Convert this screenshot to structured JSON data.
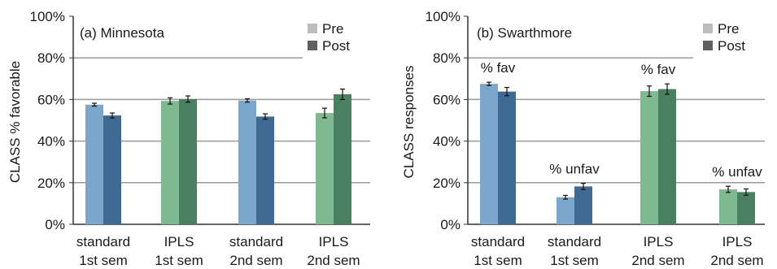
{
  "colors": {
    "standard_pre": "#7aa7cb",
    "standard_post": "#3e6a93",
    "ipls_pre": "#7fb992",
    "ipls_post": "#4a8060",
    "legend_pre": "#bdbdbd",
    "legend_post": "#5f5f5f",
    "grid": "#9a9a9a",
    "axis": "#333333"
  },
  "legend": {
    "pre": "Pre",
    "post": "Post"
  },
  "chart_data": [
    {
      "type": "bar",
      "title": "(a) Minnesota",
      "ylabel": "CLASS % favorable",
      "xlabel": "",
      "ylim": [
        0,
        100
      ],
      "yticks": [
        "0%",
        "20%",
        "40%",
        "60%",
        "80%",
        "100%"
      ],
      "grid": true,
      "legend_position": "top-right",
      "categories": [
        {
          "line1": "standard",
          "line2": "1st sem",
          "group": "standard"
        },
        {
          "line1": "IPLS",
          "line2": "1st sem",
          "group": "ipls"
        },
        {
          "line1": "standard",
          "line2": "2nd sem",
          "group": "standard"
        },
        {
          "line1": "IPLS",
          "line2": "2nd sem",
          "group": "ipls"
        }
      ],
      "series": [
        {
          "name": "Pre",
          "values": [
            57.5,
            59.3,
            59.5,
            53.5
          ],
          "errors": [
            0.7,
            1.5,
            0.8,
            2.3
          ]
        },
        {
          "name": "Post",
          "values": [
            52.3,
            60.2,
            51.8,
            62.5
          ],
          "errors": [
            1.2,
            1.5,
            1.3,
            2.5
          ]
        }
      ],
      "annotations": []
    },
    {
      "type": "bar",
      "title": "(b) Swarthmore",
      "ylabel": "CLASS responses",
      "xlabel": "",
      "ylim": [
        0,
        100
      ],
      "yticks": [
        "0%",
        "20%",
        "40%",
        "60%",
        "80%",
        "100%"
      ],
      "grid": true,
      "legend_position": "top-right",
      "categories": [
        {
          "line1": "standard",
          "line2": "1st sem",
          "group": "standard"
        },
        {
          "line1": "standard",
          "line2": "1st sem",
          "group": "standard"
        },
        {
          "line1": "IPLS",
          "line2": "2nd sem",
          "group": "ipls"
        },
        {
          "line1": "IPLS",
          "line2": "2nd sem",
          "group": "ipls"
        }
      ],
      "series": [
        {
          "name": "Pre",
          "values": [
            67.5,
            13.0,
            64.0,
            16.8
          ],
          "errors": [
            0.8,
            0.9,
            2.5,
            1.5
          ]
        },
        {
          "name": "Post",
          "values": [
            63.8,
            18.2,
            65.0,
            15.5
          ],
          "errors": [
            2.0,
            1.5,
            2.5,
            1.5
          ]
        }
      ],
      "annotations": [
        "% fav",
        "% unfav",
        "% fav",
        "% unfav"
      ]
    }
  ]
}
